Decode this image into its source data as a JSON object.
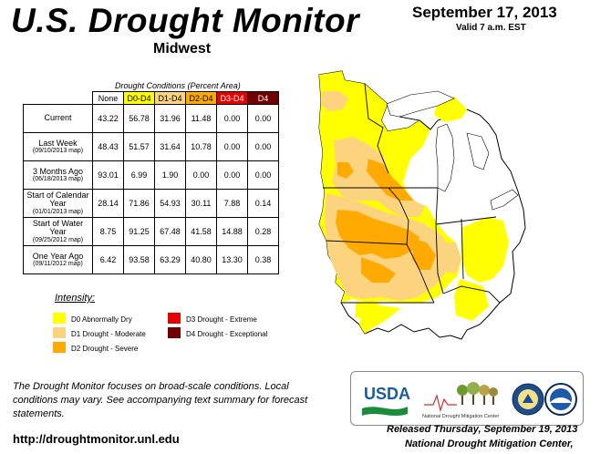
{
  "header": {
    "title": "U.S. Drought Monitor",
    "date": "September 17, 2013",
    "valid": "Valid 7 a.m. EST",
    "region": "Midwest"
  },
  "table": {
    "caption": "Drought Conditions (Percent Area)",
    "columns": [
      "None",
      "D0-D4",
      "D1-D4",
      "D2-D4",
      "D3-D4",
      "D4"
    ],
    "column_colors": [
      "#ffffff",
      "#ffff00",
      "#fcd37f",
      "#ffaa00",
      "#e60000",
      "#730000"
    ],
    "rows": [
      {
        "label": "Current",
        "sub": "",
        "values": [
          "43.22",
          "56.78",
          "31.96",
          "11.48",
          "0.00",
          "0.00"
        ]
      },
      {
        "label": "Last Week",
        "sub": "(09/10/2013 map)",
        "values": [
          "48.43",
          "51.57",
          "31.64",
          "10.78",
          "0.00",
          "0.00"
        ]
      },
      {
        "label": "3 Months Ago",
        "sub": "(06/18/2013 map)",
        "values": [
          "93.01",
          "6.99",
          "1.90",
          "0.00",
          "0.00",
          "0.00"
        ]
      },
      {
        "label": "Start of Calendar Year",
        "sub": "(01/01/2013 map)",
        "values": [
          "28.14",
          "71.86",
          "54.93",
          "30.11",
          "7.88",
          "0.14"
        ]
      },
      {
        "label": "Start of Water Year",
        "sub": "(09/25/2012 map)",
        "values": [
          "8.75",
          "91.25",
          "67.48",
          "41.58",
          "14.88",
          "0.28"
        ]
      },
      {
        "label": "One Year Ago",
        "sub": "(09/11/2012 map)",
        "values": [
          "6.42",
          "93.58",
          "63.29",
          "40.80",
          "13.30",
          "0.38"
        ]
      }
    ]
  },
  "legend": {
    "title": "Intensity:",
    "items": [
      {
        "label": "D0 Abnormally Dry",
        "color": "#ffff00"
      },
      {
        "label": "D1 Drought - Moderate",
        "color": "#fcd37f"
      },
      {
        "label": "D2 Drought - Severe",
        "color": "#ffaa00"
      },
      {
        "label": "D3 Drought - Extreme",
        "color": "#e60000"
      },
      {
        "label": "D4 Drought - Exceptional",
        "color": "#730000"
      }
    ]
  },
  "note": "The Drought Monitor focuses on broad-scale conditions. Local conditions may vary. See accompanying text summary for forecast statements.",
  "url": "http://droughtmonitor.unl.edu",
  "logos": {
    "usda": "USDA",
    "ndmc": "National Drought Mitigation Center"
  },
  "footer": {
    "released": "Released Thursday, September 19, 2013",
    "center": "National Drought Mitigation Center,"
  }
}
